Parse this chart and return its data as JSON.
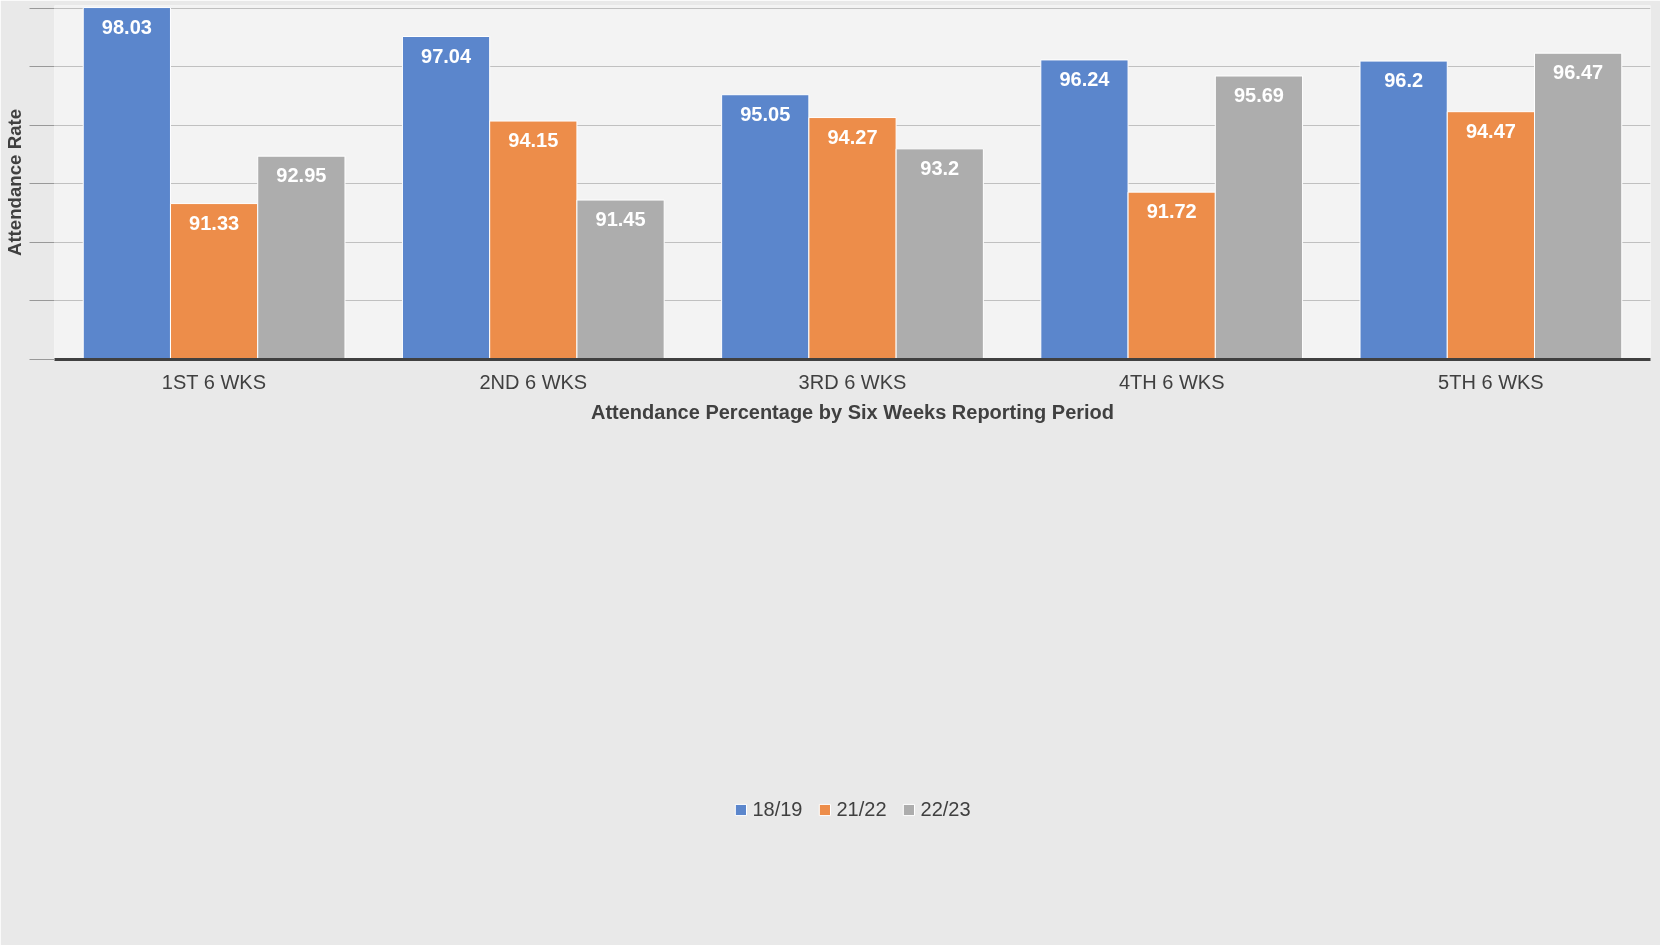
{
  "chart_data": {
    "type": "bar",
    "xlabel": "Attendance Percentage by Six Weeks Reporting Period",
    "ylabel": "Attendance Rate",
    "categories": [
      "1ST 6 WKS",
      "2ND 6 WKS",
      "3RD 6 WKS",
      "4TH 6 WKS",
      "5TH 6 WKS"
    ],
    "series": [
      {
        "name": "18/19",
        "color": "#5b86cc",
        "values": [
          98.03,
          97.04,
          95.05,
          96.24,
          96.2
        ]
      },
      {
        "name": "21/22",
        "color": "#ed8d4a",
        "values": [
          91.33,
          94.15,
          94.27,
          91.72,
          94.47
        ]
      },
      {
        "name": "22/23",
        "color": "#adadad",
        "values": [
          92.95,
          91.45,
          93.2,
          95.69,
          96.47
        ]
      }
    ],
    "ylim": [
      86,
      98.1
    ],
    "yticks": [
      {
        "value": 86,
        "label": null
      },
      {
        "value": 88,
        "label": null
      },
      {
        "value": 90,
        "label": null
      },
      {
        "value": 92,
        "label": null
      },
      {
        "value": 94,
        "label": null
      },
      {
        "value": 96,
        "label": null
      },
      {
        "value": 98,
        "label": null
      }
    ],
    "tick_labels": "x",
    "grid": "y",
    "legend": "bottom",
    "data_labels": true
  }
}
